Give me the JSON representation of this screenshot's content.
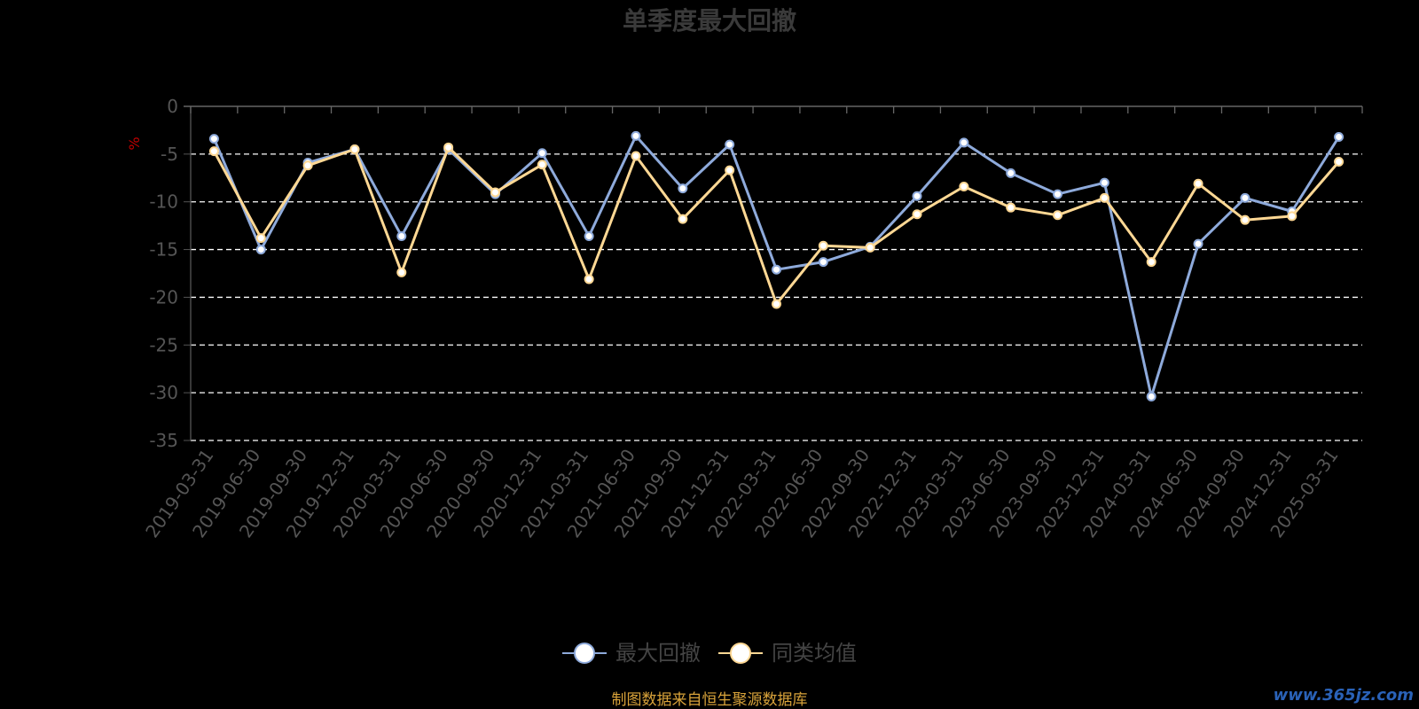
{
  "chart_data": {
    "type": "line",
    "title": "单季度最大回撤",
    "ylabel": "%",
    "ylim": [
      -35,
      0
    ],
    "yticks": [
      0,
      -5,
      -10,
      -15,
      -20,
      -25,
      -30,
      -35
    ],
    "grid": true,
    "legend_position": "bottom",
    "categories": [
      "2019-03-31",
      "2019-06-30",
      "2019-09-30",
      "2019-12-31",
      "2020-03-31",
      "2020-06-30",
      "2020-09-30",
      "2020-12-31",
      "2021-03-31",
      "2021-06-30",
      "2021-09-30",
      "2021-12-31",
      "2022-03-31",
      "2022-06-30",
      "2022-09-30",
      "2022-12-31",
      "2023-03-31",
      "2023-06-30",
      "2023-09-30",
      "2023-12-31",
      "2024-03-31",
      "2024-06-30",
      "2024-09-30",
      "2024-12-31",
      "2025-03-31"
    ],
    "series": [
      {
        "name": "最大回撤",
        "color": "#8eaadb",
        "values": [
          -3.4,
          -15.0,
          -5.9,
          -4.5,
          -13.6,
          -4.5,
          -9.2,
          -4.9,
          -13.6,
          -3.1,
          -8.6,
          -4.0,
          -17.1,
          -16.3,
          -14.7,
          -9.4,
          -3.8,
          -7.0,
          -9.2,
          -8.0,
          -30.4,
          -14.4,
          -9.6,
          -11.0,
          -3.2
        ]
      },
      {
        "name": "同类均值",
        "color": "#ffd894",
        "values": [
          -4.7,
          -13.8,
          -6.2,
          -4.5,
          -17.4,
          -4.3,
          -9.0,
          -6.1,
          -18.1,
          -5.2,
          -11.8,
          -6.7,
          -20.7,
          -14.6,
          -14.8,
          -11.3,
          -8.4,
          -10.6,
          -11.4,
          -9.6,
          -16.3,
          -8.1,
          -11.9,
          -11.5,
          -5.8
        ]
      }
    ],
    "source": "制图数据来自恒生聚源数据库",
    "watermark": "www.365jz.com"
  }
}
